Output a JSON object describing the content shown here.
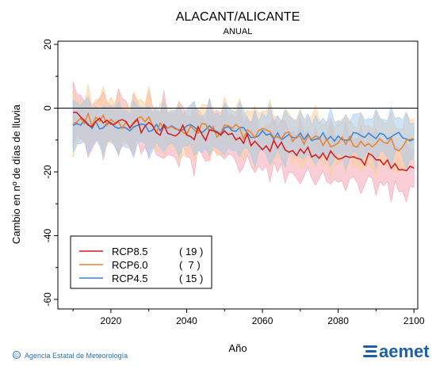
{
  "chart_data": {
    "type": "line",
    "title": "ALACANT/ALICANTE",
    "subtitle": "ANUAL",
    "xlabel": "Año",
    "ylabel": "Cambio en nº de días de lluvia",
    "xlim": [
      2006,
      2101
    ],
    "ylim": [
      -63,
      21
    ],
    "xticks": [
      2020,
      2040,
      2060,
      2080,
      2100
    ],
    "yticks": [
      20,
      0,
      -20,
      -40,
      -60
    ],
    "reference_line": 0,
    "legend_position": "bottom-left",
    "x_start": 2010,
    "x_end": 2100,
    "series": [
      {
        "name": "RCP8.5",
        "count": "( 19 )",
        "color": "#d7191c",
        "band_color": "#f4a6b6",
        "trend": [
          [
            2010,
            -3
          ],
          [
            2030,
            -6
          ],
          [
            2050,
            -9
          ],
          [
            2070,
            -13
          ],
          [
            2100,
            -18
          ]
        ],
        "spread": [
          6,
          7
        ],
        "wiggle": 2.2
      },
      {
        "name": "RCP6.0",
        "count": "(  7 )",
        "color": "#e8822c",
        "band_color": "#fdd09a",
        "trend": [
          [
            2010,
            -3
          ],
          [
            2030,
            -5
          ],
          [
            2050,
            -7
          ],
          [
            2070,
            -10
          ],
          [
            2100,
            -11
          ]
        ],
        "spread": [
          6,
          7
        ],
        "wiggle": 2.5
      },
      {
        "name": "RCP4.5",
        "count": "( 15 )",
        "color": "#3a82d6",
        "band_color": "#a8ccee",
        "trend": [
          [
            2010,
            -5
          ],
          [
            2030,
            -6
          ],
          [
            2050,
            -7
          ],
          [
            2070,
            -9
          ],
          [
            2100,
            -9
          ]
        ],
        "spread": [
          5,
          5
        ],
        "wiggle": 1.5
      }
    ]
  },
  "footer": {
    "credit": "Agencia Estatal de Meteorología",
    "logo_text": "aemet",
    "copyright_symbol": "©"
  }
}
